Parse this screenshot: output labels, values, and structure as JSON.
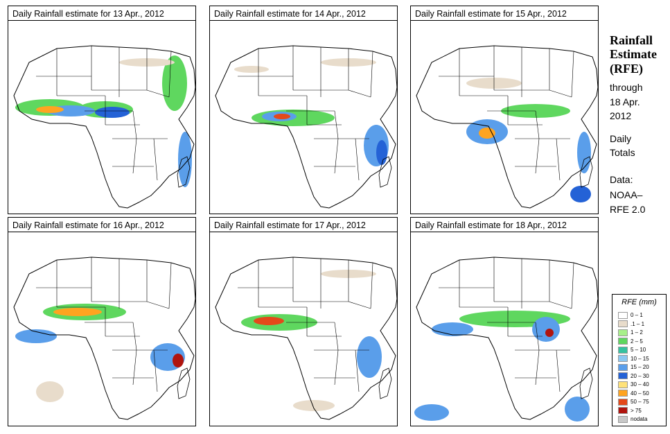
{
  "panels": [
    {
      "title": "Daily Rainfall estimate for  13 Apr., 2012"
    },
    {
      "title": "Daily Rainfall estimate for  14 Apr., 2012"
    },
    {
      "title": "Daily Rainfall estimate for  15 Apr., 2012"
    },
    {
      "title": "Daily Rainfall estimate for  16 Apr., 2012"
    },
    {
      "title": "Daily Rainfall estimate for  17 Apr., 2012"
    },
    {
      "title": "Daily Rainfall estimate for  18 Apr., 2012"
    }
  ],
  "side": {
    "title_line1": "Rainfall",
    "title_line2": "Estimate",
    "title_line3": "(RFE)",
    "through": "through",
    "date_line1": "18 Apr.",
    "date_line2": "2012",
    "daily": "Daily",
    "totals": "Totals",
    "data_label": "Data:",
    "source_line1": "NOAA–",
    "source_line2": "RFE 2.0"
  },
  "legend": {
    "title": "RFE (mm)",
    "items": [
      {
        "label": "0 – 1",
        "color": "#ffffff"
      },
      {
        "label": ".1 – 1",
        "color": "#e8dccb"
      },
      {
        "label": "1 – 2",
        "color": "#a8f08a"
      },
      {
        "label": "2 – 5",
        "color": "#5fd75f"
      },
      {
        "label": "5 – 10",
        "color": "#35c2a0"
      },
      {
        "label": "10 – 15",
        "color": "#8cc8f2"
      },
      {
        "label": "15 – 20",
        "color": "#5a9eea"
      },
      {
        "label": "20 – 30",
        "color": "#2462d6"
      },
      {
        "label": "30 – 40",
        "color": "#ffe27a"
      },
      {
        "label": "40 – 50",
        "color": "#ffa420"
      },
      {
        "label": "50 – 75",
        "color": "#e4491a"
      },
      {
        "label": "> 75",
        "color": "#b0140e"
      },
      {
        "label": "nodata",
        "color": "#c8c8c8"
      }
    ]
  }
}
